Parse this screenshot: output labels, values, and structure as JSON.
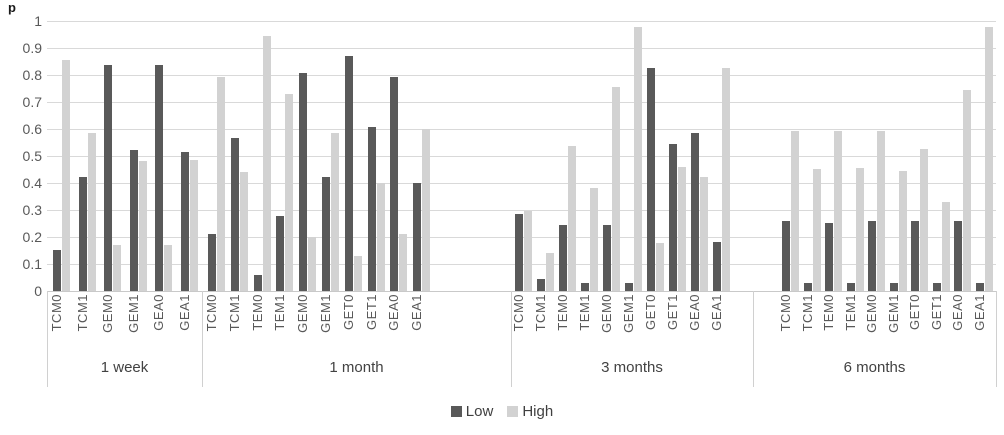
{
  "chart_data": {
    "type": "bar",
    "title": "",
    "xlabel": "",
    "ylabel": "p",
    "ylim": [
      0,
      1
    ],
    "grid": true,
    "legend_position": "bottom",
    "legend": [
      "Low",
      "High"
    ],
    "colors": {
      "low": "#595959",
      "high": "#d2d2d2"
    },
    "yticks": [
      "0",
      "0.1",
      "0.2",
      "0.3",
      "0.4",
      "0.5",
      "0.6",
      "0.7",
      "0.8",
      "0.9",
      "1"
    ],
    "groups": [
      {
        "label": "1 week",
        "categories": [
          "TCM0",
          "TCM1",
          "GEM0",
          "GEM1",
          "GEA0",
          "GEA1"
        ],
        "series": [
          {
            "name": "Low",
            "values": [
              0.15,
              0.42,
              0.835,
              0.52,
              0.835,
              0.515
            ]
          },
          {
            "name": "High",
            "values": [
              0.855,
              0.585,
              0.17,
              0.48,
              0.17,
              0.485
            ]
          }
        ]
      },
      {
        "label": "1 month",
        "categories": [
          "TCM0",
          "TCM1",
          "TEM0",
          "TEM1",
          "GEM0",
          "GEM1",
          "GET0",
          "GET1",
          "GEA0",
          "GEA1"
        ],
        "series": [
          {
            "name": "Low",
            "values": [
              0.21,
              0.565,
              0.06,
              0.275,
              0.805,
              0.42,
              0.87,
              0.605,
              0.79,
              0.4
            ]
          },
          {
            "name": "High",
            "values": [
              0.79,
              0.44,
              0.945,
              0.73,
              0.2,
              0.585,
              0.13,
              0.4,
              0.21,
              0.6
            ]
          }
        ]
      },
      {
        "label": "3 months",
        "categories": [
          "TCM0",
          "TCM1",
          "TEM0",
          "TEM1",
          "GEM0",
          "GEM1",
          "GET0",
          "GET1",
          "GEA0",
          "GEA1"
        ],
        "series": [
          {
            "name": "Low",
            "values": [
              0.285,
              0.045,
              0.245,
              0.03,
              0.245,
              0.03,
              0.825,
              0.545,
              0.585,
              0.18
            ]
          },
          {
            "name": "High",
            "values": [
              0.295,
              0.14,
              0.535,
              0.38,
              0.755,
              0.975,
              0.175,
              0.46,
              0.42,
              0.825
            ]
          }
        ]
      },
      {
        "label": "6 months",
        "categories": [
          "TCM0",
          "TCM1",
          "TEM0",
          "TEM1",
          "GEM0",
          "GEM1",
          "GET0",
          "GET1",
          "GEA0",
          "GEA1"
        ],
        "series": [
          {
            "name": "Low",
            "values": [
              0.26,
              0.03,
              0.25,
              0.03,
              0.26,
              0.03,
              0.26,
              0.03,
              0.26,
              0.03
            ]
          },
          {
            "name": "High",
            "values": [
              0.59,
              0.45,
              0.59,
              0.455,
              0.59,
              0.445,
              0.525,
              0.33,
              0.745,
              0.975
            ]
          }
        ]
      }
    ]
  }
}
